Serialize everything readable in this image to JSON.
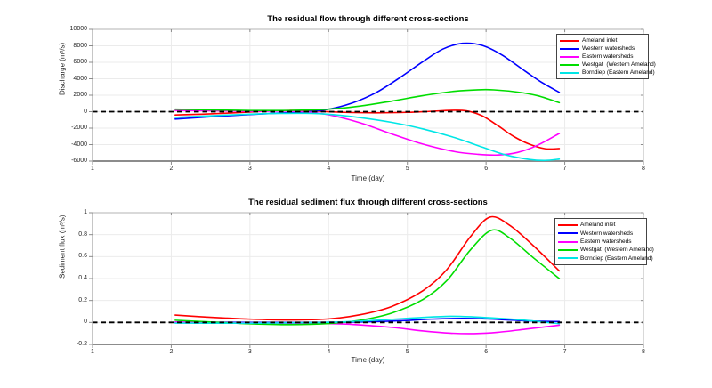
{
  "figure": {
    "background": "#ffffff"
  },
  "chart_data": [
    {
      "type": "line",
      "title": "The residual flow through different cross-sections",
      "xlabel": "Time (day)",
      "ylabel": "Discharge (m³/s)",
      "xlim": [
        1,
        8
      ],
      "ylim": [
        -6000,
        10000
      ],
      "grid": true,
      "legend_position": "top-right",
      "xticks": {
        "values": [
          1,
          2,
          3,
          4,
          5,
          6,
          7,
          8
        ],
        "labels": [
          "1",
          "2",
          "3",
          "4",
          "5",
          "6",
          "7",
          "8"
        ]
      },
      "yticks": {
        "values": [
          -6000,
          -4000,
          -2000,
          0,
          2000,
          4000,
          6000,
          8000,
          10000
        ],
        "labels": [
          "-6000",
          "-4000",
          "-2000",
          "0",
          "2000",
          "4000",
          "6000",
          "8000",
          "10000"
        ]
      },
      "zero_line": {
        "y": 0,
        "style": "dashed",
        "color": "#000000"
      },
      "series": [
        {
          "name": "Ameland inlet",
          "color": "#ff0000",
          "points": [
            [
              2.05,
              -400
            ],
            [
              2.4,
              -300
            ],
            [
              2.8,
              -140
            ],
            [
              3.2,
              60
            ],
            [
              3.5,
              150
            ],
            [
              3.8,
              80
            ],
            [
              4.2,
              -80
            ],
            [
              4.6,
              -140
            ],
            [
              5.0,
              -80
            ],
            [
              5.3,
              40
            ],
            [
              5.55,
              160
            ],
            [
              5.75,
              100
            ],
            [
              5.95,
              -500
            ],
            [
              6.15,
              -1700
            ],
            [
              6.35,
              -3000
            ],
            [
              6.55,
              -3950
            ],
            [
              6.75,
              -4500
            ],
            [
              6.93,
              -4480
            ]
          ]
        },
        {
          "name": "Western watersheds",
          "color": "#0000ff",
          "points": [
            [
              2.05,
              -900
            ],
            [
              2.5,
              -620
            ],
            [
              3.0,
              -340
            ],
            [
              3.4,
              -160
            ],
            [
              3.7,
              -40
            ],
            [
              4.0,
              300
            ],
            [
              4.3,
              1050
            ],
            [
              4.6,
              2300
            ],
            [
              4.9,
              4100
            ],
            [
              5.2,
              6100
            ],
            [
              5.45,
              7600
            ],
            [
              5.7,
              8300
            ],
            [
              5.95,
              8050
            ],
            [
              6.2,
              6900
            ],
            [
              6.5,
              4900
            ],
            [
              6.7,
              3600
            ],
            [
              6.93,
              2350
            ]
          ]
        },
        {
          "name": "Eastern watersheds",
          "color": "#ff00ff",
          "points": [
            [
              2.05,
              150
            ],
            [
              2.5,
              110
            ],
            [
              3.0,
              50
            ],
            [
              3.4,
              70
            ],
            [
              3.7,
              -20
            ],
            [
              4.0,
              -380
            ],
            [
              4.4,
              -1350
            ],
            [
              4.8,
              -2700
            ],
            [
              5.2,
              -3950
            ],
            [
              5.6,
              -4850
            ],
            [
              5.9,
              -5180
            ],
            [
              6.15,
              -5260
            ],
            [
              6.4,
              -4950
            ],
            [
              6.65,
              -4100
            ],
            [
              6.93,
              -2650
            ]
          ]
        },
        {
          "name": "Westgat  (Western Ameland)",
          "color": "#00dd00",
          "points": [
            [
              2.05,
              300
            ],
            [
              2.5,
              220
            ],
            [
              3.0,
              150
            ],
            [
              3.5,
              150
            ],
            [
              4.0,
              300
            ],
            [
              4.4,
              680
            ],
            [
              4.8,
              1280
            ],
            [
              5.2,
              1950
            ],
            [
              5.6,
              2480
            ],
            [
              5.9,
              2660
            ],
            [
              6.1,
              2650
            ],
            [
              6.4,
              2380
            ],
            [
              6.65,
              1950
            ],
            [
              6.93,
              1100
            ]
          ]
        },
        {
          "name": "Borndiep (Eastern Ameland)",
          "color": "#00e6e6",
          "points": [
            [
              2.05,
              -700
            ],
            [
              2.5,
              -500
            ],
            [
              3.0,
              -300
            ],
            [
              3.4,
              -210
            ],
            [
              3.7,
              -200
            ],
            [
              4.0,
              -320
            ],
            [
              4.4,
              -720
            ],
            [
              4.8,
              -1300
            ],
            [
              5.2,
              -2100
            ],
            [
              5.6,
              -3150
            ],
            [
              5.95,
              -4300
            ],
            [
              6.25,
              -5250
            ],
            [
              6.55,
              -5800
            ],
            [
              6.75,
              -5920
            ],
            [
              6.93,
              -5760
            ]
          ]
        }
      ]
    },
    {
      "type": "line",
      "title": "The residual sediment flux through different cross-sections",
      "xlabel": "Time (day)",
      "ylabel": "Sediment flux (m³/s)",
      "xlim": [
        1,
        8
      ],
      "ylim": [
        -0.2,
        1
      ],
      "grid": true,
      "legend_position": "top-right",
      "xticks": {
        "values": [
          1,
          2,
          3,
          4,
          5,
          6,
          7,
          8
        ],
        "labels": [
          "1",
          "2",
          "3",
          "4",
          "5",
          "6",
          "7",
          "8"
        ]
      },
      "yticks": {
        "values": [
          -0.2,
          0,
          0.2,
          0.4,
          0.6,
          0.8,
          1
        ],
        "labels": [
          "-0.2",
          "0",
          "0.2",
          "0.4",
          "0.6",
          "0.8",
          "1"
        ]
      },
      "zero_line": {
        "y": 0,
        "style": "dashed",
        "color": "#000000"
      },
      "series": [
        {
          "name": "Ameland inlet",
          "color": "#ff0000",
          "points": [
            [
              2.05,
              0.067
            ],
            [
              2.5,
              0.047
            ],
            [
              3.0,
              0.03
            ],
            [
              3.5,
              0.022
            ],
            [
              4.0,
              0.032
            ],
            [
              4.4,
              0.07
            ],
            [
              4.8,
              0.145
            ],
            [
              5.2,
              0.29
            ],
            [
              5.5,
              0.48
            ],
            [
              5.8,
              0.78
            ],
            [
              6.05,
              0.96
            ],
            [
              6.3,
              0.885
            ],
            [
              6.6,
              0.7
            ],
            [
              6.93,
              0.47
            ]
          ]
        },
        {
          "name": "Western watersheds",
          "color": "#0000ff",
          "points": [
            [
              2.05,
              0.002
            ],
            [
              2.6,
              0.001
            ],
            [
              3.2,
              0.0
            ],
            [
              3.8,
              0.0
            ],
            [
              4.4,
              0.004
            ],
            [
              4.9,
              0.015
            ],
            [
              5.3,
              0.03
            ],
            [
              5.7,
              0.037
            ],
            [
              6.0,
              0.032
            ],
            [
              6.3,
              0.022
            ],
            [
              6.6,
              0.012
            ],
            [
              6.93,
              0.008
            ]
          ]
        },
        {
          "name": "Eastern watersheds",
          "color": "#ff00ff",
          "points": [
            [
              2.05,
              0.003
            ],
            [
              2.6,
              -0.002
            ],
            [
              3.2,
              -0.006
            ],
            [
              3.8,
              -0.008
            ],
            [
              4.3,
              -0.018
            ],
            [
              4.8,
              -0.045
            ],
            [
              5.2,
              -0.078
            ],
            [
              5.55,
              -0.098
            ],
            [
              5.85,
              -0.102
            ],
            [
              6.15,
              -0.09
            ],
            [
              6.5,
              -0.062
            ],
            [
              6.93,
              -0.025
            ]
          ]
        },
        {
          "name": "Westgat  (Western Ameland)",
          "color": "#00dd00",
          "points": [
            [
              2.05,
              0.02
            ],
            [
              2.5,
              0.004
            ],
            [
              3.0,
              -0.012
            ],
            [
              3.5,
              -0.02
            ],
            [
              4.0,
              -0.01
            ],
            [
              4.4,
              0.02
            ],
            [
              4.8,
              0.085
            ],
            [
              5.2,
              0.21
            ],
            [
              5.5,
              0.38
            ],
            [
              5.8,
              0.66
            ],
            [
              6.07,
              0.84
            ],
            [
              6.3,
              0.77
            ],
            [
              6.6,
              0.59
            ],
            [
              6.93,
              0.4
            ]
          ]
        },
        {
          "name": "Borndiep (Eastern Ameland)",
          "color": "#00e6e6",
          "points": [
            [
              2.05,
              -0.006
            ],
            [
              2.6,
              -0.007
            ],
            [
              3.2,
              -0.006
            ],
            [
              3.8,
              -0.002
            ],
            [
              4.3,
              0.008
            ],
            [
              4.8,
              0.028
            ],
            [
              5.2,
              0.046
            ],
            [
              5.55,
              0.056
            ],
            [
              5.85,
              0.05
            ],
            [
              6.15,
              0.038
            ],
            [
              6.5,
              0.02
            ],
            [
              6.93,
              -0.012
            ]
          ]
        }
      ]
    }
  ]
}
